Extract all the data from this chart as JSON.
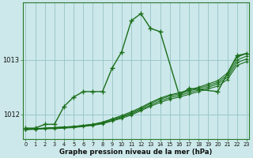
{
  "background_color": "#cce8ea",
  "grid_color": "#9dc8cc",
  "line_color": "#1a6e1a",
  "xlabel": "Graphe pression niveau de la mer (hPa)",
  "yticks": [
    1012,
    1013
  ],
  "xlim": [
    0,
    23
  ],
  "ylim": [
    1011.55,
    1014.05
  ],
  "main_x": [
    0,
    1,
    2,
    3,
    4,
    5,
    6,
    7,
    8,
    9,
    10,
    11,
    12,
    13,
    14,
    16,
    17,
    20,
    22,
    23
  ],
  "main_y": [
    1011.75,
    1011.75,
    1011.82,
    1011.82,
    1012.15,
    1012.32,
    1012.42,
    1012.42,
    1012.42,
    1012.85,
    1013.15,
    1013.72,
    1013.85,
    1013.58,
    1013.52,
    1012.35,
    1012.48,
    1012.42,
    1013.08,
    1013.12
  ],
  "flat_lines_x": [
    0,
    1,
    2,
    3,
    4,
    5,
    6,
    7,
    8,
    9,
    10,
    11,
    12,
    13,
    14,
    15,
    16,
    17,
    18,
    19,
    20,
    21,
    22,
    23
  ],
  "flat_lines_y": [
    [
      1011.73,
      1011.74,
      1011.75,
      1011.76,
      1011.77,
      1011.78,
      1011.8,
      1011.82,
      1011.86,
      1011.92,
      1011.98,
      1012.05,
      1012.13,
      1012.22,
      1012.3,
      1012.36,
      1012.4,
      1012.45,
      1012.5,
      1012.56,
      1012.62,
      1012.76,
      1013.05,
      1013.12
    ],
    [
      1011.73,
      1011.74,
      1011.75,
      1011.76,
      1011.77,
      1011.78,
      1011.8,
      1011.82,
      1011.85,
      1011.91,
      1011.96,
      1012.03,
      1012.11,
      1012.2,
      1012.28,
      1012.34,
      1012.38,
      1012.43,
      1012.48,
      1012.53,
      1012.59,
      1012.72,
      1013.0,
      1013.07
    ],
    [
      1011.73,
      1011.73,
      1011.74,
      1011.75,
      1011.76,
      1011.77,
      1011.79,
      1011.81,
      1011.84,
      1011.89,
      1011.95,
      1012.01,
      1012.09,
      1012.17,
      1012.25,
      1012.31,
      1012.35,
      1012.4,
      1012.45,
      1012.5,
      1012.56,
      1012.68,
      1012.95,
      1013.02
    ],
    [
      1011.72,
      1011.73,
      1011.74,
      1011.74,
      1011.75,
      1011.76,
      1011.78,
      1011.8,
      1011.83,
      1011.88,
      1011.93,
      1011.99,
      1012.07,
      1012.15,
      1012.22,
      1012.28,
      1012.32,
      1012.37,
      1012.42,
      1012.47,
      1012.52,
      1012.64,
      1012.9,
      1012.97
    ]
  ]
}
